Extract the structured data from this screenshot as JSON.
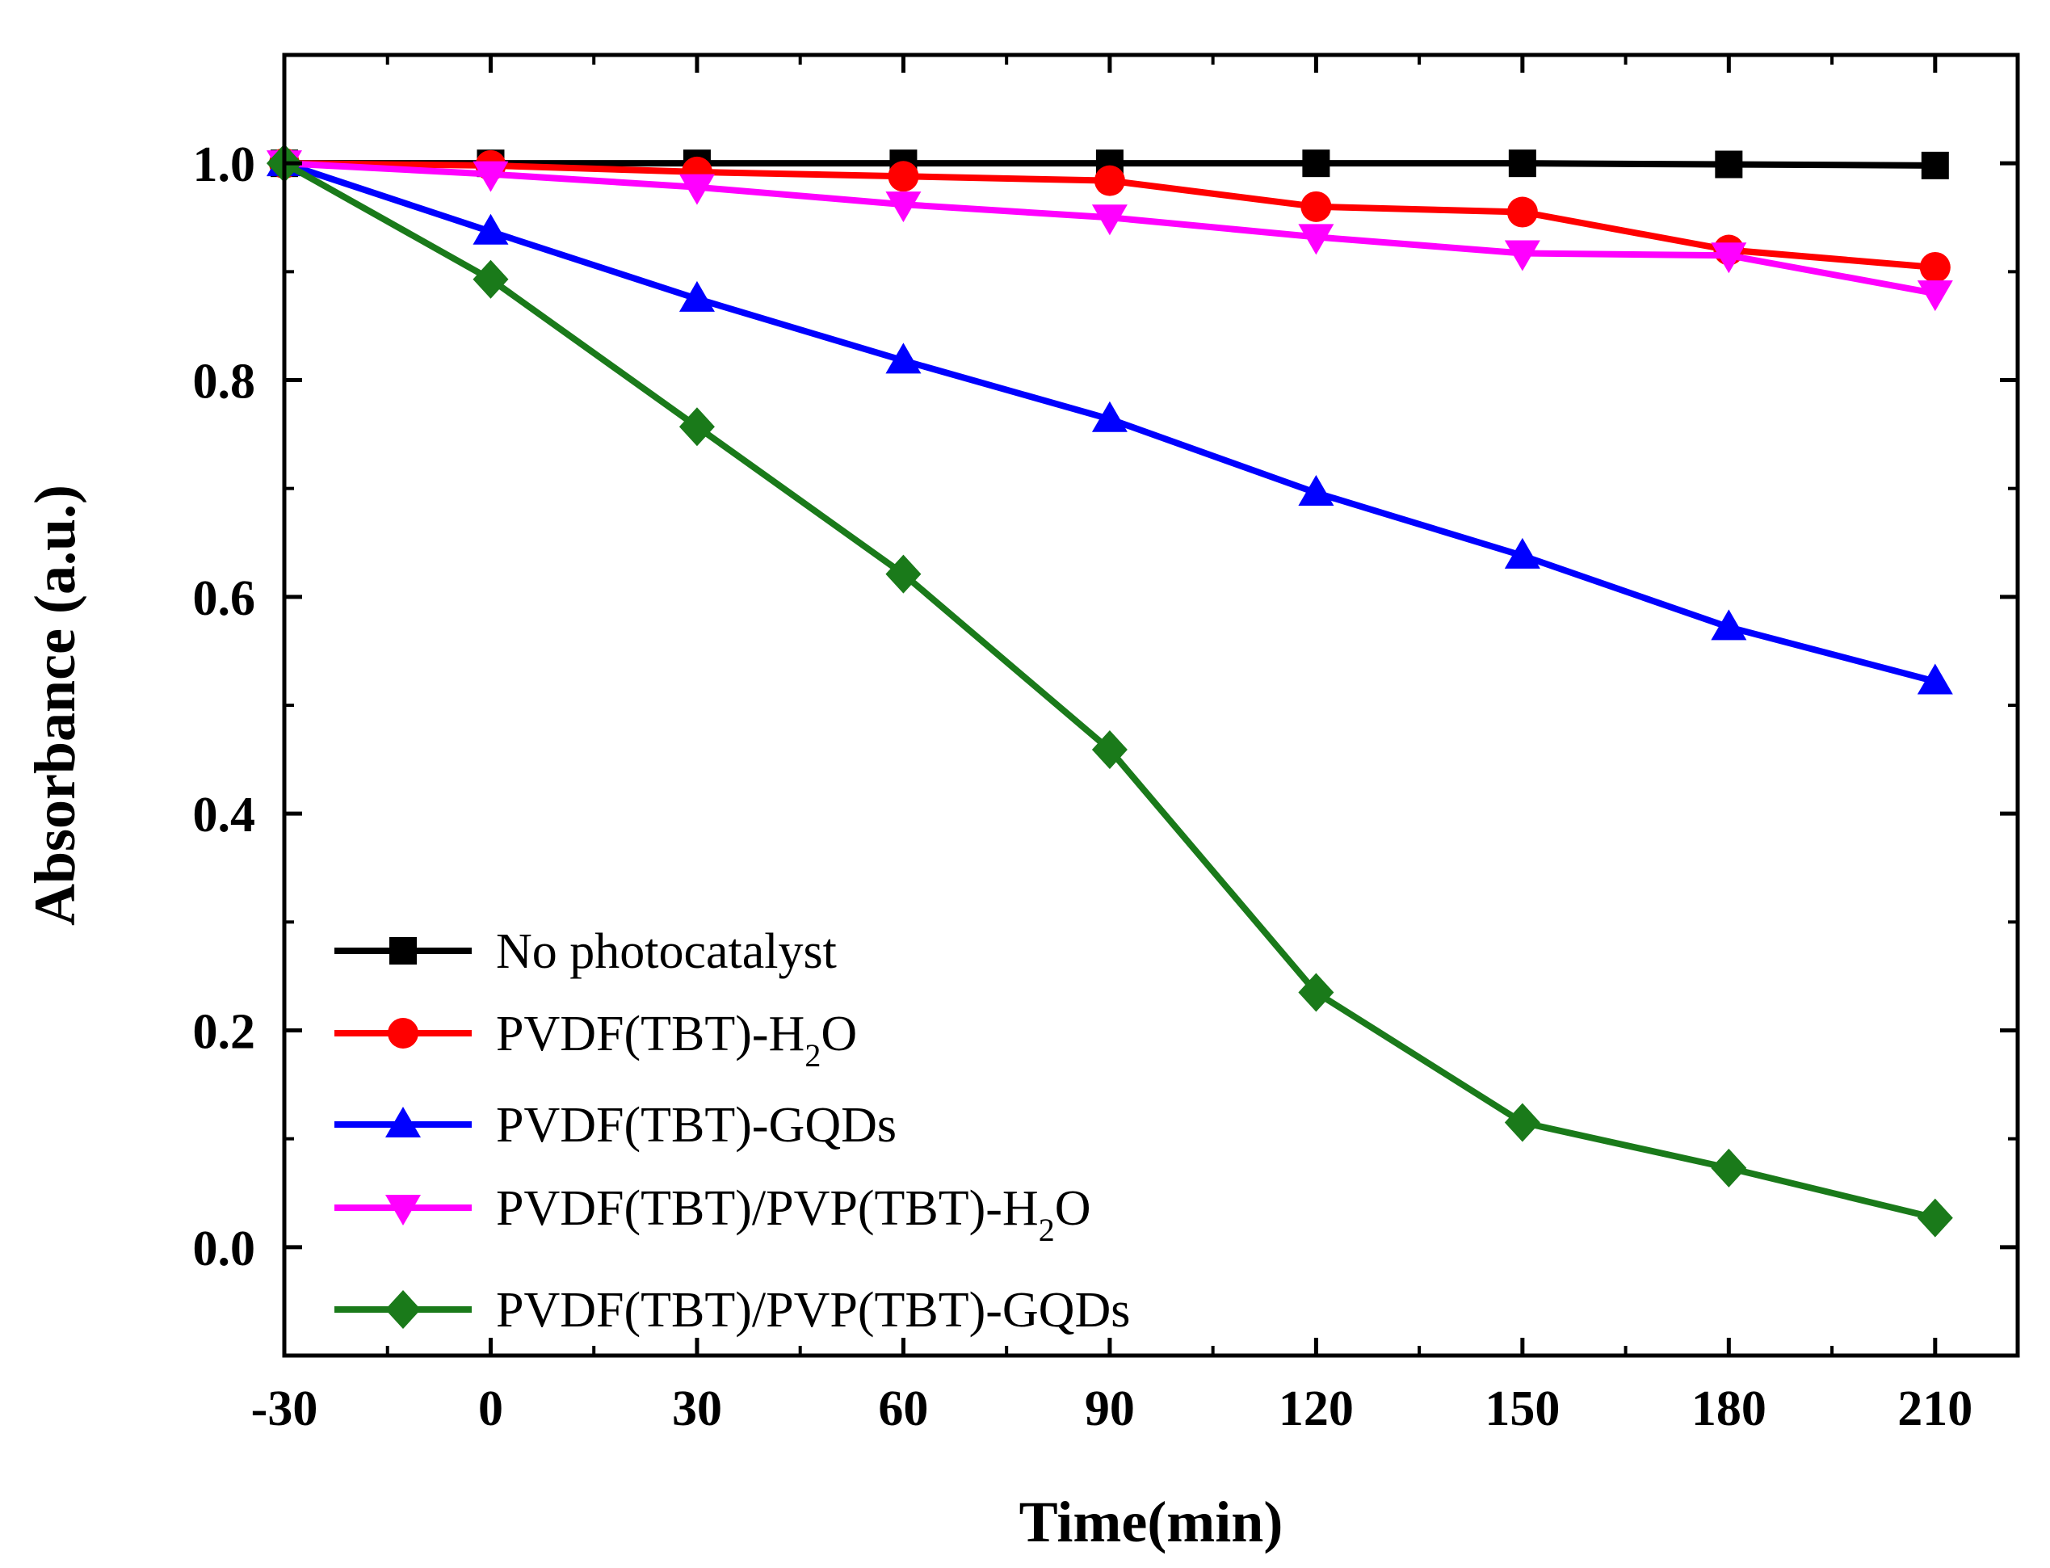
{
  "chart_data": {
    "type": "line",
    "title": "",
    "xlabel": "Time(min)",
    "ylabel": "Absorbance (a.u.)",
    "xlim": [
      -30,
      222
    ],
    "ylim": [
      -0.1,
      1.1
    ],
    "x": [
      -30,
      0,
      30,
      60,
      90,
      120,
      150,
      180,
      210
    ],
    "xticks": [
      -30,
      0,
      30,
      60,
      90,
      120,
      150,
      180,
      210
    ],
    "xtick_labels": [
      "-30",
      "0",
      "30",
      "60",
      "90",
      "120",
      "150",
      "180",
      "210"
    ],
    "yticks": [
      0.0,
      0.2,
      0.4,
      0.6,
      0.8,
      1.0
    ],
    "ytick_labels": [
      "0.0",
      "0.2",
      "0.4",
      "0.6",
      "0.8",
      "1.0"
    ],
    "grid": false,
    "legend_position": "bottom-left",
    "series": [
      {
        "name": "No photocatalyst",
        "label_main": "No photocatalyst",
        "label_sub": "",
        "label_tail": "",
        "color": "#000000",
        "marker": "square",
        "values": [
          1.0,
          1.0,
          1.0,
          1.0,
          1.0,
          1.0,
          1.0,
          0.999,
          0.998
        ]
      },
      {
        "name": "PVDF(TBT)-H2O",
        "label_main": "PVDF(TBT)-H",
        "label_sub": "2",
        "label_tail": "O",
        "color": "#ff0000",
        "marker": "circle",
        "values": [
          1.0,
          0.998,
          0.992,
          0.988,
          0.984,
          0.96,
          0.955,
          0.92,
          0.904
        ]
      },
      {
        "name": "PVDF(TBT)-GQDs",
        "label_main": "PVDF(TBT)-GQDs",
        "label_sub": "",
        "label_tail": "",
        "color": "#0000ff",
        "marker": "triangle-up",
        "values": [
          1.0,
          0.937,
          0.875,
          0.818,
          0.764,
          0.696,
          0.638,
          0.572,
          0.522
        ]
      },
      {
        "name": "PVDF(TBT)/PVP(TBT)-H2O",
        "label_main": "PVDF(TBT)/PVP(TBT)-H",
        "label_sub": "2",
        "label_tail": "O",
        "color": "#ff00ff",
        "marker": "triangle-down",
        "values": [
          1.0,
          0.99,
          0.978,
          0.962,
          0.95,
          0.932,
          0.917,
          0.915,
          0.88
        ]
      },
      {
        "name": "PVDF(TBT)/PVP(TBT)-GQDs",
        "label_main": "PVDF(TBT)/PVP(TBT)-GQDs",
        "label_sub": "",
        "label_tail": "",
        "color": "#1a7a1a",
        "marker": "diamond",
        "values": [
          1.0,
          0.893,
          0.757,
          0.621,
          0.459,
          0.235,
          0.115,
          0.073,
          0.027
        ]
      }
    ]
  }
}
